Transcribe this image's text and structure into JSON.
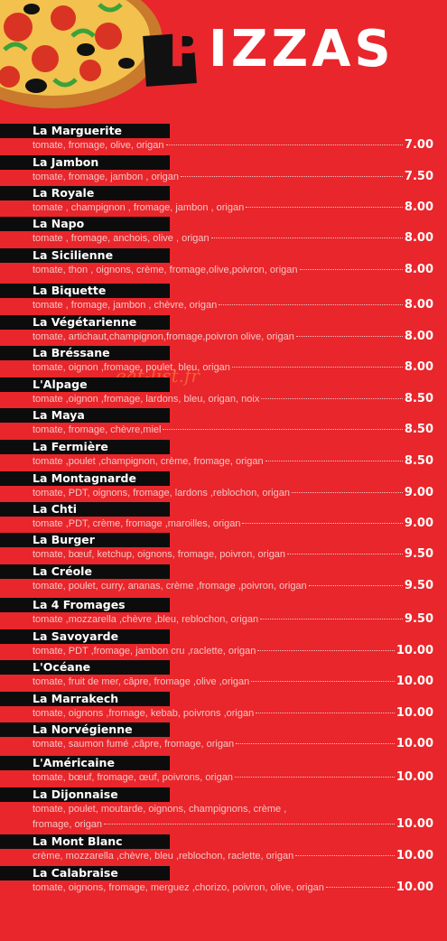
{
  "header": {
    "title": "PIZZAS"
  },
  "watermark": "eat-list.fr",
  "items": [
    {
      "name": "La Marguerite",
      "description": [
        "tomate, fromage, olive, origan"
      ],
      "price": "7.00"
    },
    {
      "name": "La Jambon",
      "description": [
        "tomate, fromage, jambon , origan"
      ],
      "price": "7.50"
    },
    {
      "name": "La Royale",
      "description": [
        "tomate , champignon , fromage, jambon , origan"
      ],
      "price": "8.00"
    },
    {
      "name": "La Napo",
      "description": [
        "tomate , fromage, anchois, olive , origan"
      ],
      "price": "8.00"
    },
    {
      "name": "La Sicilienne",
      "description": [
        "tomate, thon , oignons, crème, fromage,olive,poivron, origan"
      ],
      "price": "8.00"
    },
    {
      "name": "La Biquette",
      "description": [
        "tomate , fromage, jambon , chèvre, origan"
      ],
      "price": "8.00"
    },
    {
      "name": "La Végétarienne",
      "description": [
        "tomate, artichaut,champignon,fromage,poivron olive, origan"
      ],
      "price": "8.00"
    },
    {
      "name": "La Bréssane",
      "description": [
        "tomate, oignon ,fromage, poulet, bleu, origan"
      ],
      "price": "8.00"
    },
    {
      "name": "L'Alpage",
      "description": [
        "tomate ,oignon ,fromage, lardons, bleu, origan, noix"
      ],
      "price": "8.50"
    },
    {
      "name": "La Maya",
      "description": [
        "tomate, fromage, chèvre,miel"
      ],
      "price": "8.50"
    },
    {
      "name": "La Fermière",
      "description": [
        "tomate ,poulet ,champignon, crème, fromage, origan"
      ],
      "price": "8.50"
    },
    {
      "name": "La Montagnarde",
      "description": [
        "tomate, PDT, oignons, fromage, lardons ,reblochon, origan"
      ],
      "price": "9.00"
    },
    {
      "name": "La Chti",
      "description": [
        "tomate ,PDT, crème, fromage ,maroilles, origan"
      ],
      "price": "9.00"
    },
    {
      "name": "La Burger",
      "description": [
        "tomate, bœuf, ketchup, oignons, fromage, poivron, origan"
      ],
      "price": "9.50"
    },
    {
      "name": "La Créole",
      "description": [
        "tomate, poulet, curry, ananas, crème ,fromage ,poivron, origan"
      ],
      "price": "9.50"
    },
    {
      "name": "La 4 Fromages",
      "description": [
        "tomate ,mozzarella ,chèvre ,bleu, reblochon, origan"
      ],
      "price": "9.50"
    },
    {
      "name": "La Savoyarde",
      "description": [
        "tomate, PDT ,fromage, jambon cru ,raclette, origan"
      ],
      "price": "10.00"
    },
    {
      "name": "L'Océane",
      "description": [
        "tomate, fruit de mer, câpre, fromage ,olive ,origan"
      ],
      "price": "10.00"
    },
    {
      "name": "La Marrakech",
      "description": [
        "tomate, oignons ,fromage, kebab, poivrons ,origan"
      ],
      "price": "10.00"
    },
    {
      "name": "La Norvégienne",
      "description": [
        "tomate, saumon fumé ,câpre, fromage, origan"
      ],
      "price": "10.00"
    },
    {
      "name": "L'Américaine",
      "description": [
        "tomate, bœuf, fromage, œuf, poivrons, origan"
      ],
      "price": "10.00"
    },
    {
      "name": "La Dijonnaise",
      "description": [
        "tomate, poulet, moutarde, oignons, champignons, crème ,",
        "fromage, origan"
      ],
      "price": "10.00"
    },
    {
      "name": "La Mont Blanc",
      "description": [
        "crème, mozzarella ,chèvre, bleu ,reblochon, raclette, origan"
      ],
      "price": "10.00"
    },
    {
      "name": "La Calabraise",
      "description": [
        "tomate, oignons, fromage, merguez ,chorizo, poivron, olive, origan"
      ],
      "price": "10.00"
    }
  ]
}
